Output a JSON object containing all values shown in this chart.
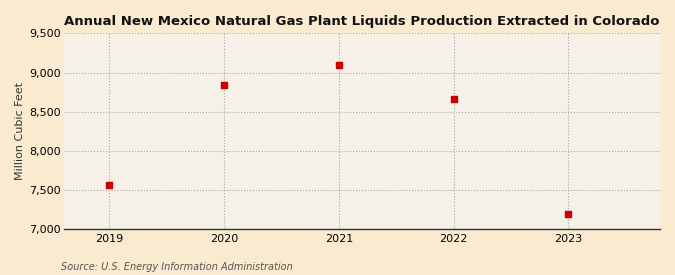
{
  "title": "Annual New Mexico Natural Gas Plant Liquids Production Extracted in Colorado",
  "ylabel": "Million Cubic Feet",
  "source": "Source: U.S. Energy Information Administration",
  "x": [
    2019,
    2020,
    2021,
    2022,
    2023
  ],
  "y": [
    7560,
    8840,
    9090,
    8660,
    7190
  ],
  "marker_color": "#cc0000",
  "marker_size": 25,
  "marker_style": "s",
  "ylim": [
    7000,
    9500
  ],
  "yticks": [
    7000,
    7500,
    8000,
    8500,
    9000,
    9500
  ],
  "xticks": [
    2019,
    2020,
    2021,
    2022,
    2023
  ],
  "xlim": [
    2018.6,
    2023.8
  ],
  "bg_color": "#faebd0",
  "plot_bg_color": "#f5f0e8",
  "grid_color": "#888888",
  "title_fontsize": 9.5,
  "axis_fontsize": 8,
  "source_fontsize": 7
}
